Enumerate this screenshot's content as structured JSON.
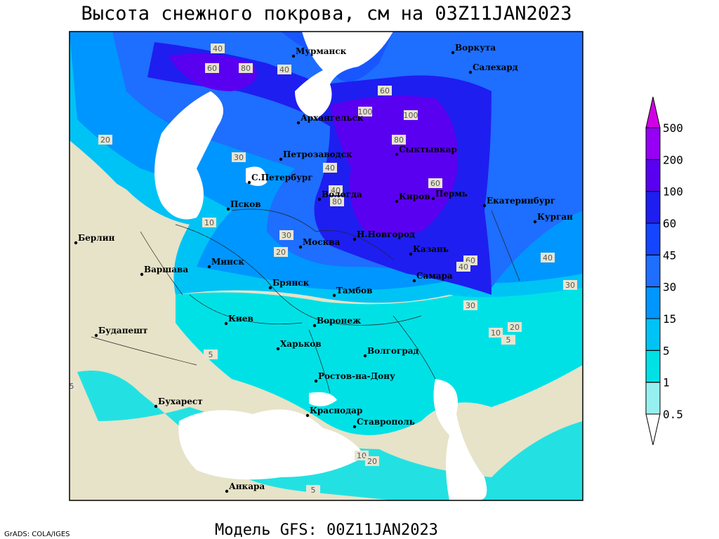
{
  "title": "Высота снежного покрова, см на 03Z11JAN2023",
  "subtitle": "Модель GFS: 00Z11JAN2023",
  "credit": "GrADS: COLA/IGES",
  "legend": {
    "levels": [
      0.5,
      1,
      5,
      15,
      30,
      45,
      60,
      100,
      200,
      500
    ],
    "colors": [
      "#ffffff",
      "#96f0f0",
      "#00e1e6",
      "#00c3f5",
      "#0096ff",
      "#1e6eff",
      "#1446ff",
      "#1e1ef0",
      "#5a00f0",
      "#9600f5",
      "#d200e6"
    ]
  },
  "cities": [
    "Мурманск",
    "Воркута",
    "Салехард",
    "Архангельск",
    "Петрозаводск",
    "Сыктывкар",
    "С.Петербург",
    "Вологда",
    "Киров",
    "Пермь",
    "Екатеринбург",
    "Курган",
    "Псков",
    "Н.Новгород",
    "Москва",
    "Казань",
    "Берлин",
    "Минск",
    "Варшава",
    "Брянск",
    "Тамбов",
    "Самара",
    "Киев",
    "Воронеж",
    "Будапешт",
    "Харьков",
    "Волгоград",
    "Ростов-на-Дону",
    "Бухарест",
    "Краснодар",
    "Ставрополь",
    "Анкара"
  ],
  "contour_labels": [
    40,
    60,
    80,
    40,
    60,
    100,
    100,
    80,
    20,
    30,
    40,
    60,
    80,
    40,
    10,
    30,
    20,
    60,
    40,
    30,
    10,
    20,
    5,
    5,
    5,
    30,
    40,
    5,
    10,
    20
  ]
}
